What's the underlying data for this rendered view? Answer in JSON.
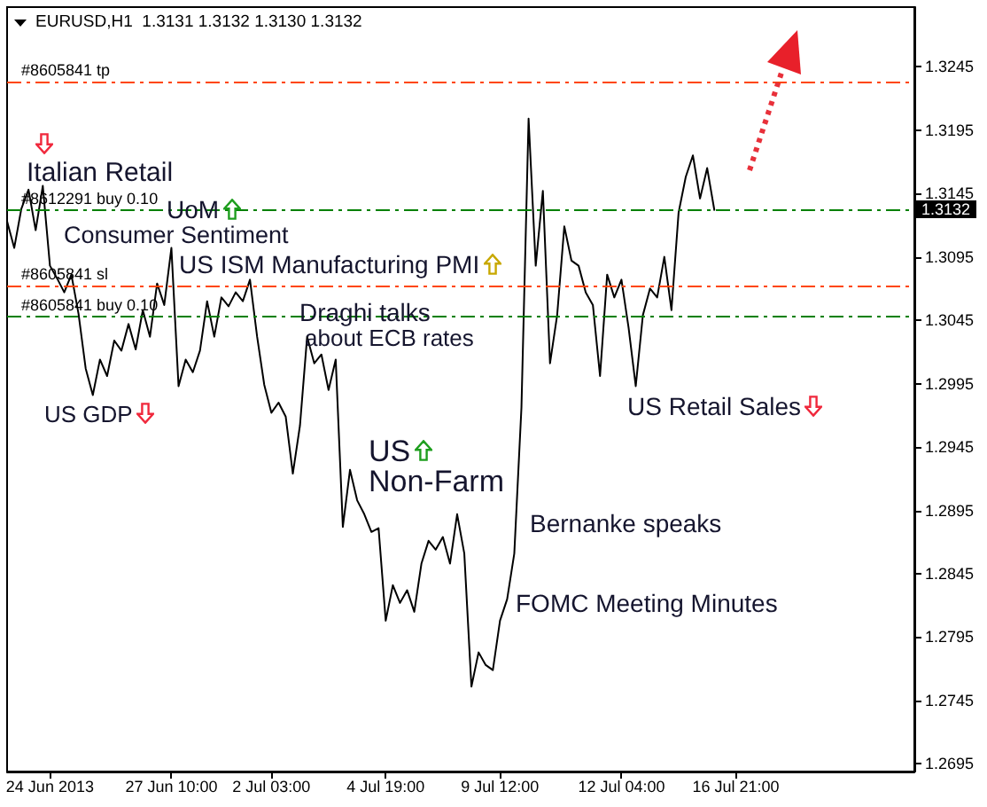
{
  "chart_data": {
    "type": "line",
    "title": "EURUSD,H1  1.3131 1.3132 1.3130 1.3132",
    "categories": [
      null,
      null,
      null,
      null,
      null,
      null,
      "24 Jun 2013",
      null,
      null,
      null,
      null,
      null,
      null,
      null,
      null,
      null,
      null,
      null,
      null,
      null,
      null,
      null,
      null,
      "27 Jun 10:00",
      null,
      null,
      null,
      null,
      null,
      null,
      null,
      null,
      null,
      null,
      null,
      null,
      null,
      "2 Jul 03:00",
      null,
      null,
      null,
      null,
      null,
      null,
      null,
      null,
      null,
      null,
      null,
      null,
      null,
      null,
      null,
      "4 Jul 19:00",
      null,
      null,
      null,
      null,
      null,
      null,
      null,
      null,
      null,
      null,
      null,
      null,
      null,
      null,
      null,
      "9 Jul 12:00",
      null,
      null,
      null,
      null,
      null,
      null,
      null,
      null,
      null,
      null,
      null,
      null,
      null,
      null,
      null,
      null,
      "12 Jul 04:00",
      null,
      null,
      null,
      null,
      null,
      null,
      null,
      null,
      null,
      null,
      null,
      null,
      null,
      null,
      null,
      "16 Jul 21:00",
      null,
      null,
      null,
      null,
      null,
      null,
      null,
      null,
      null,
      null,
      null,
      null,
      null,
      null,
      null,
      null,
      null,
      null,
      null,
      null,
      null,
      null,
      null,
      null,
      null
    ],
    "values": [
      1.3123,
      1.3102,
      1.3133,
      1.3148,
      1.3116,
      1.3151,
      1.3088,
      1.3078,
      1.3067,
      1.3081,
      1.305,
      1.3007,
      1.2986,
      1.3014,
      1.3001,
      1.3029,
      1.3021,
      1.3042,
      1.3022,
      1.3053,
      1.3032,
      1.3074,
      1.3057,
      1.3102,
      1.2993,
      1.3014,
      1.3004,
      1.3021,
      1.306,
      1.3032,
      1.3063,
      1.3056,
      1.3067,
      1.306,
      1.3077,
      1.3032,
      1.2994,
      1.2972,
      1.298,
      1.2969,
      1.2924,
      1.2962,
      1.3032,
      1.3011,
      1.3018,
      1.299,
      1.3014,
      1.2882,
      1.2927,
      1.2903,
      1.2892,
      1.2878,
      1.2881,
      1.2808,
      1.2836,
      1.2822,
      1.2832,
      1.2815,
      1.2853,
      1.2871,
      1.2864,
      1.2874,
      1.2853,
      1.2892,
      1.2861,
      1.2756,
      1.2783,
      1.2773,
      1.2769,
      1.2808,
      1.2825,
      1.2861,
      1.2976,
      1.3204,
      1.3088,
      1.3147,
      1.3011,
      1.3049,
      1.3119,
      1.3092,
      1.3088,
      1.3067,
      1.3057,
      1.3001,
      1.3081,
      1.3063,
      1.3077,
      1.3039,
      1.2993,
      1.3049,
      1.307,
      1.3063,
      1.3095,
      1.3053,
      1.313,
      1.3158,
      1.3175,
      1.3141,
      1.3165,
      1.3132,
      null,
      null,
      null,
      null,
      null,
      null,
      null,
      null,
      null,
      null,
      null,
      null,
      null,
      null,
      null,
      null,
      null,
      null,
      null,
      null,
      null,
      null,
      null,
      null,
      null,
      null,
      null,
      null
    ],
    "color": "#000000",
    "marker": "none",
    "ylim": [
      1.2689,
      1.3292
    ],
    "yticks": [
      1.2695,
      1.2745,
      1.2795,
      1.2845,
      1.2895,
      1.2945,
      1.2995,
      1.3045,
      1.3095,
      1.3145,
      1.3195,
      1.3245
    ],
    "ref_lines": [
      {
        "axis": "y",
        "value": 1.3233,
        "label": "#8605841 tp",
        "color": "#ff4500",
        "line_style": "dashed"
      },
      {
        "axis": "y",
        "value": 1.3132,
        "label": "#8612291 buy 0.10",
        "color": "#008000",
        "line_style": "dashed"
      },
      {
        "axis": "y",
        "value": 1.3072,
        "label": "#8605841 sl",
        "color": "#ff4500",
        "line_style": "dashed"
      },
      {
        "axis": "y",
        "value": 1.3048,
        "label": "#8605841 buy 0.10",
        "color": "#008000",
        "line_style": "dashed"
      }
    ],
    "annotations": [
      "Italian Retail",
      "UoM",
      "Consumer Sentiment",
      "US ISM Manufacturing PMI",
      "Draghi talks",
      "about ECB rates",
      "US GDP",
      "US",
      "Non-Farm",
      "Bernanke speaks",
      "FOMC Meeting Minutes",
      "US Retail Sales",
      "1.3132"
    ]
  }
}
